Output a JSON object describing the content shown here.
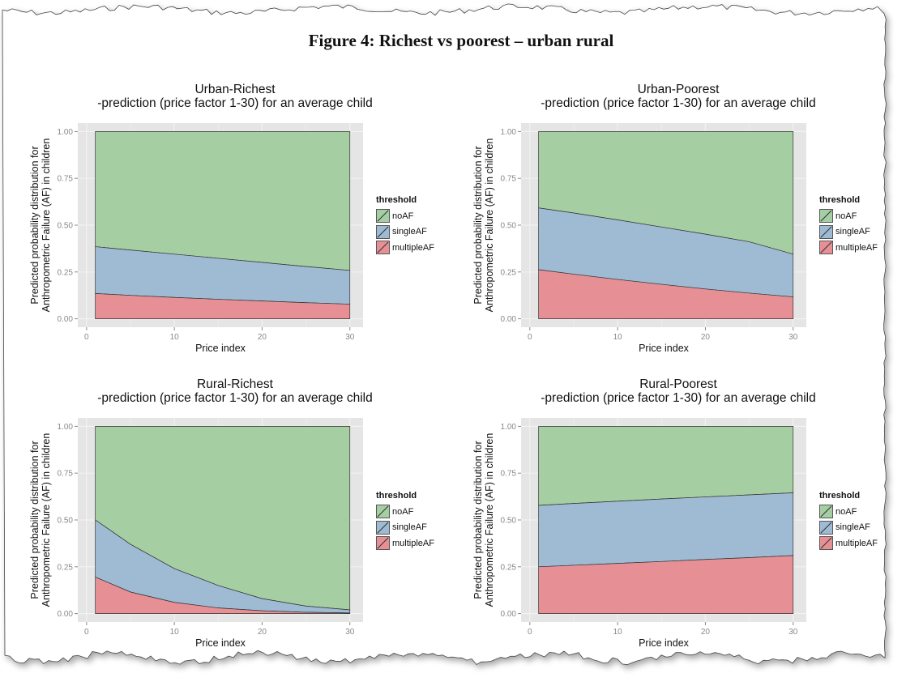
{
  "figure": {
    "title": "Figure 4: Richest vs poorest – urban rural"
  },
  "colors": {
    "noAF": "#a6cea3",
    "singleAF": "#9fbbd3",
    "multipleAF": "#e69095",
    "panel_bg": "#e5e5e5",
    "grid": "#f2f2f2"
  },
  "legend": {
    "title": "threshold",
    "items": [
      "noAF",
      "singleAF",
      "multipleAF"
    ]
  },
  "chart_data": [
    {
      "type": "area",
      "title": "Urban-Richest",
      "subtitle": "-prediction (price factor  1-30) for an average child",
      "xlabel": "Price index",
      "ylabel": [
        "Predicted probability distribution for",
        "Anthropometric Failure (AF) in children"
      ],
      "xlim": [
        1,
        30
      ],
      "ylim": [
        0,
        1
      ],
      "xticks": [
        0,
        10,
        20,
        30
      ],
      "yticks": [
        "0.00",
        "0.25",
        "0.50",
        "0.75",
        "1.00"
      ],
      "x": [
        1,
        5,
        10,
        15,
        20,
        25,
        30
      ],
      "series": [
        {
          "name": "multipleAF",
          "cumulative": [
            0.135,
            0.125,
            0.114,
            0.104,
            0.095,
            0.086,
            0.078
          ]
        },
        {
          "name": "singleAF",
          "cumulative": [
            0.385,
            0.367,
            0.345,
            0.323,
            0.301,
            0.279,
            0.258
          ]
        },
        {
          "name": "noAF",
          "cumulative": [
            1,
            1,
            1,
            1,
            1,
            1,
            1
          ]
        }
      ]
    },
    {
      "type": "area",
      "title": "Urban-Poorest",
      "subtitle": "-prediction (price factor  1-30) for an average child",
      "xlabel": "Price index",
      "ylabel": [
        "Predicted probability distribution for",
        "Anthropometric Failure (AF) in children"
      ],
      "xlim": [
        1,
        30
      ],
      "ylim": [
        0,
        1
      ],
      "xticks": [
        0,
        10,
        20,
        30
      ],
      "yticks": [
        "0.00",
        "0.25",
        "0.50",
        "0.75",
        "1.00"
      ],
      "x": [
        1,
        5,
        10,
        15,
        20,
        25,
        30
      ],
      "series": [
        {
          "name": "multipleAF",
          "cumulative": [
            0.262,
            0.238,
            0.21,
            0.184,
            0.159,
            0.137,
            0.117
          ]
        },
        {
          "name": "singleAF",
          "cumulative": [
            0.592,
            0.565,
            0.528,
            0.49,
            0.452,
            0.411,
            0.345
          ]
        },
        {
          "name": "noAF",
          "cumulative": [
            1,
            1,
            1,
            1,
            1,
            1,
            1
          ]
        }
      ]
    },
    {
      "type": "area",
      "title": "Rural-Richest",
      "subtitle": "-prediction (price factor  1-30) for an average child",
      "xlabel": "Price index",
      "ylabel": [
        "Predicted probability distribution for",
        "Anthropometric Failure (AF) in children"
      ],
      "xlim": [
        1,
        30
      ],
      "ylim": [
        0,
        1
      ],
      "xticks": [
        0,
        10,
        20,
        30
      ],
      "yticks": [
        "0.00",
        "0.25",
        "0.50",
        "0.75",
        "1.00"
      ],
      "x": [
        1,
        5,
        10,
        15,
        20,
        25,
        30
      ],
      "series": [
        {
          "name": "multipleAF",
          "cumulative": [
            0.195,
            0.115,
            0.06,
            0.03,
            0.015,
            0.007,
            0.003
          ]
        },
        {
          "name": "singleAF",
          "cumulative": [
            0.5,
            0.37,
            0.24,
            0.15,
            0.08,
            0.04,
            0.02
          ]
        },
        {
          "name": "noAF",
          "cumulative": [
            1,
            1,
            1,
            1,
            1,
            1,
            1
          ]
        }
      ]
    },
    {
      "type": "area",
      "title": "Rural-Poorest",
      "subtitle": "-prediction (price factor  1-30) for an average child",
      "xlabel": "Price index",
      "ylabel": [
        "Predicted probability distribution for",
        "Anthropometric Failure (AF) in children"
      ],
      "xlim": [
        1,
        30
      ],
      "ylim": [
        0,
        1
      ],
      "xticks": [
        0,
        10,
        20,
        30
      ],
      "yticks": [
        "0.00",
        "0.25",
        "0.50",
        "0.75",
        "1.00"
      ],
      "x": [
        1,
        5,
        10,
        15,
        20,
        25,
        30
      ],
      "series": [
        {
          "name": "multipleAF",
          "cumulative": [
            0.25,
            0.258,
            0.268,
            0.278,
            0.289,
            0.299,
            0.31
          ]
        },
        {
          "name": "singleAF",
          "cumulative": [
            0.578,
            0.588,
            0.6,
            0.612,
            0.623,
            0.634,
            0.645
          ]
        },
        {
          "name": "noAF",
          "cumulative": [
            1,
            1,
            1,
            1,
            1,
            1,
            1
          ]
        }
      ]
    }
  ]
}
